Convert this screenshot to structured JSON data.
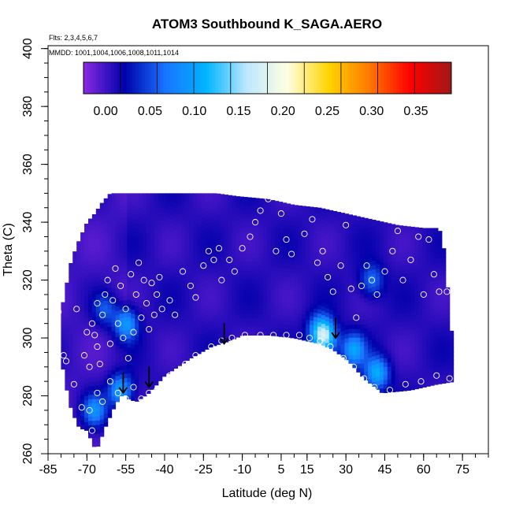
{
  "chart_data": {
    "type": "heatmap",
    "title": "ATOM3 Southbound K_SAGA.AERO",
    "flights_note": "Flts: 2,3,4,5,6,7",
    "dates_note": "MMDD: 1001,1004,1006,1008,1011,1014",
    "xlabel": "Latitude (deg N)",
    "ylabel": "Theta (C)",
    "x_ticks": [
      "-85",
      "-70",
      "-55",
      "-40",
      "-25",
      "-10",
      "5",
      "15",
      "30",
      "45",
      "60",
      "75"
    ],
    "y_ticks": [
      "260",
      "280",
      "300",
      "320",
      "340",
      "360",
      "380",
      "400"
    ],
    "xlim": [
      -85,
      85
    ],
    "ylim": [
      260,
      401
    ],
    "colorbar": {
      "ticks": [
        "0.00",
        "0.05",
        "0.10",
        "0.15",
        "0.20",
        "0.25",
        "0.30",
        "0.35"
      ],
      "range": [
        -0.025,
        0.39
      ],
      "colors": [
        "#8a2be2",
        "#0000ab",
        "#1874ff",
        "#00b4ff",
        "#bfe8ff",
        "#ffffe0",
        "#ffd400",
        "#ff7800",
        "#ff0000",
        "#a01818"
      ]
    },
    "data_boundary": {
      "top": [
        [
          -80,
          309
        ],
        [
          -78,
          318
        ],
        [
          -76,
          327
        ],
        [
          -73,
          334
        ],
        [
          -70,
          340
        ],
        [
          -67,
          343
        ],
        [
          -64,
          347
        ],
        [
          -61,
          350
        ],
        [
          -30,
          350
        ],
        [
          -20,
          350
        ],
        [
          -12,
          349
        ],
        [
          0,
          348
        ],
        [
          10,
          346
        ],
        [
          20,
          345
        ],
        [
          30,
          343
        ],
        [
          40,
          341
        ],
        [
          50,
          339
        ],
        [
          60,
          338
        ],
        [
          66,
          338
        ],
        [
          68,
          330
        ],
        [
          69,
          320
        ],
        [
          70,
          310
        ],
        [
          71,
          300
        ],
        [
          72,
          285
        ]
      ],
      "bottom": [
        [
          72,
          285
        ],
        [
          65,
          284
        ],
        [
          55,
          282
        ],
        [
          44,
          281
        ],
        [
          37,
          286
        ],
        [
          31,
          292
        ],
        [
          25,
          296
        ],
        [
          20,
          298
        ],
        [
          10,
          300
        ],
        [
          0,
          301
        ],
        [
          -10,
          301
        ],
        [
          -15,
          299
        ],
        [
          -22,
          297
        ],
        [
          -30,
          293
        ],
        [
          -40,
          287
        ],
        [
          -46,
          281
        ],
        [
          -51,
          278
        ],
        [
          -54,
          279
        ],
        [
          -56,
          281
        ],
        [
          -59,
          277
        ],
        [
          -62,
          271
        ],
        [
          -64,
          267
        ],
        [
          -65,
          263
        ],
        [
          -67,
          262
        ],
        [
          -68,
          264
        ],
        [
          -70,
          268
        ],
        [
          -73,
          269
        ],
        [
          -76,
          275
        ],
        [
          -78,
          283
        ],
        [
          -80,
          293
        ]
      ]
    },
    "field_features": [
      {
        "lat": -55,
        "theta": 305,
        "value": 0.09
      },
      {
        "lat": -67,
        "theta": 275,
        "value": 0.08
      },
      {
        "lat": -57,
        "theta": 282,
        "value": 0.1
      },
      {
        "lat": 22,
        "theta": 300,
        "value": 0.12
      },
      {
        "lat": 20,
        "theta": 303,
        "value": 0.08
      },
      {
        "lat": 33,
        "theta": 296,
        "value": 0.09
      },
      {
        "lat": 42,
        "theta": 288,
        "value": 0.1
      },
      {
        "lat": 40,
        "theta": 320,
        "value": 0.06
      },
      {
        "lat": -63,
        "theta": 310,
        "value": 0.05
      }
    ],
    "sample_points": [
      [
        -81,
        309
      ],
      [
        -79,
        294
      ],
      [
        -78,
        292
      ],
      [
        -75,
        284
      ],
      [
        -74,
        310
      ],
      [
        -71,
        294
      ],
      [
        -70,
        302
      ],
      [
        -69,
        290
      ],
      [
        -68,
        305
      ],
      [
        -67,
        301
      ],
      [
        -66,
        297
      ],
      [
        -66,
        312
      ],
      [
        -65,
        291
      ],
      [
        -64,
        308
      ],
      [
        -63,
        315
      ],
      [
        -62,
        320
      ],
      [
        -61,
        298
      ],
      [
        -60,
        313
      ],
      [
        -59,
        324
      ],
      [
        -58,
        305
      ],
      [
        -57,
        318
      ],
      [
        -56,
        300
      ],
      [
        -55,
        310
      ],
      [
        -54,
        293
      ],
      [
        -53,
        322
      ],
      [
        -52,
        302
      ],
      [
        -51,
        315
      ],
      [
        -50,
        326
      ],
      [
        -49,
        307
      ],
      [
        -48,
        320
      ],
      [
        -47,
        312
      ],
      [
        -46,
        303
      ],
      [
        -45,
        319
      ],
      [
        -44,
        308
      ],
      [
        -43,
        315
      ],
      [
        -42,
        321
      ],
      [
        -41,
        310
      ],
      [
        -38,
        313
      ],
      [
        -36,
        308
      ],
      [
        -33,
        323
      ],
      [
        -30,
        318
      ],
      [
        -28,
        314
      ],
      [
        -25,
        325
      ],
      [
        -23,
        330
      ],
      [
        -21,
        327
      ],
      [
        -19,
        331
      ],
      [
        -18,
        320
      ],
      [
        -15,
        327
      ],
      [
        -13,
        323
      ],
      [
        -10,
        331
      ],
      [
        -7,
        335
      ],
      [
        -5,
        340
      ],
      [
        -3,
        344
      ],
      [
        0,
        348
      ],
      [
        3,
        330
      ],
      [
        5,
        343
      ],
      [
        7,
        334
      ],
      [
        9,
        329
      ],
      [
        12,
        348
      ],
      [
        14,
        336
      ],
      [
        17,
        341
      ],
      [
        19,
        326
      ],
      [
        21,
        330
      ],
      [
        23,
        321
      ],
      [
        25,
        316
      ],
      [
        28,
        325
      ],
      [
        30,
        339
      ],
      [
        32,
        317
      ],
      [
        34,
        307
      ],
      [
        36,
        318
      ],
      [
        38,
        325
      ],
      [
        40,
        320
      ],
      [
        42,
        315
      ],
      [
        45,
        323
      ],
      [
        48,
        330
      ],
      [
        50,
        337
      ],
      [
        52,
        320
      ],
      [
        55,
        327
      ],
      [
        58,
        335
      ],
      [
        60,
        315
      ],
      [
        62,
        334
      ],
      [
        64,
        322
      ],
      [
        66,
        316
      ],
      [
        69,
        316
      ],
      [
        -72,
        276
      ],
      [
        -69,
        275
      ],
      [
        -68,
        268
      ],
      [
        -66,
        281
      ],
      [
        -64,
        278
      ],
      [
        -61,
        285
      ],
      [
        -58,
        281
      ],
      [
        -55,
        279
      ],
      [
        -52,
        283
      ],
      [
        -49,
        279
      ],
      [
        -46,
        281
      ],
      [
        -43,
        282
      ],
      [
        -38,
        287
      ],
      [
        -32,
        291
      ],
      [
        -28,
        294
      ],
      [
        -22,
        297
      ],
      [
        -18,
        299
      ],
      [
        -14,
        300
      ],
      [
        -9,
        301
      ],
      [
        -3,
        301
      ],
      [
        2,
        301
      ],
      [
        7,
        301
      ],
      [
        12,
        301
      ],
      [
        16,
        300
      ],
      [
        20,
        299
      ],
      [
        24,
        297
      ],
      [
        29,
        293
      ],
      [
        33,
        290
      ],
      [
        37,
        286
      ],
      [
        41,
        283
      ],
      [
        47,
        282
      ],
      [
        53,
        284
      ],
      [
        59,
        285
      ],
      [
        65,
        287
      ],
      [
        70,
        286
      ]
    ],
    "arrows": [
      {
        "lat": -56,
        "theta": 281
      },
      {
        "lat": -46,
        "theta": 283
      },
      {
        "lat": -17,
        "theta": 298
      },
      {
        "lat": 26,
        "theta": 300
      }
    ]
  }
}
